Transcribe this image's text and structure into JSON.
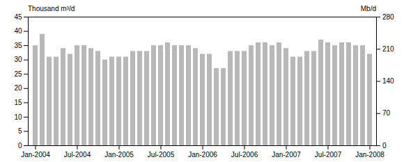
{
  "chart_data": {
    "type": "bar",
    "categories": [
      "Jan-2004",
      null,
      null,
      null,
      null,
      null,
      "Jul-2004",
      null,
      null,
      null,
      null,
      null,
      "Jan-2005",
      null,
      null,
      null,
      null,
      null,
      "Jul-2005",
      null,
      null,
      null,
      null,
      null,
      "Jan-2006",
      null,
      null,
      null,
      null,
      null,
      "Jul-2006",
      null,
      null,
      null,
      null,
      null,
      "Jan-2007",
      null,
      null,
      null,
      null,
      null,
      "Jul-2007",
      null,
      null,
      null,
      null,
      null,
      "Jan-2008"
    ],
    "values": [
      35,
      39,
      31,
      31,
      34,
      32,
      35,
      35,
      34,
      33,
      30,
      31,
      31,
      31,
      33,
      33,
      33,
      35,
      35,
      36,
      35,
      35,
      35,
      34,
      32,
      32,
      27,
      27,
      33,
      33,
      33,
      35,
      36,
      36,
      35,
      36,
      34,
      31,
      31,
      33,
      33,
      37,
      36,
      35,
      36,
      36,
      35,
      35,
      32
    ],
    "color": "#b8b8b8",
    "ylabel": "Thousand m³/d",
    "y2label": "Mb/d",
    "ylim": [
      0,
      45
    ],
    "yticks": [
      0,
      5,
      10,
      15,
      20,
      25,
      30,
      35,
      40,
      45
    ],
    "y2lim": [
      0,
      280
    ],
    "y2ticks": [
      0,
      70,
      140,
      210,
      280
    ],
    "grid": false
  }
}
